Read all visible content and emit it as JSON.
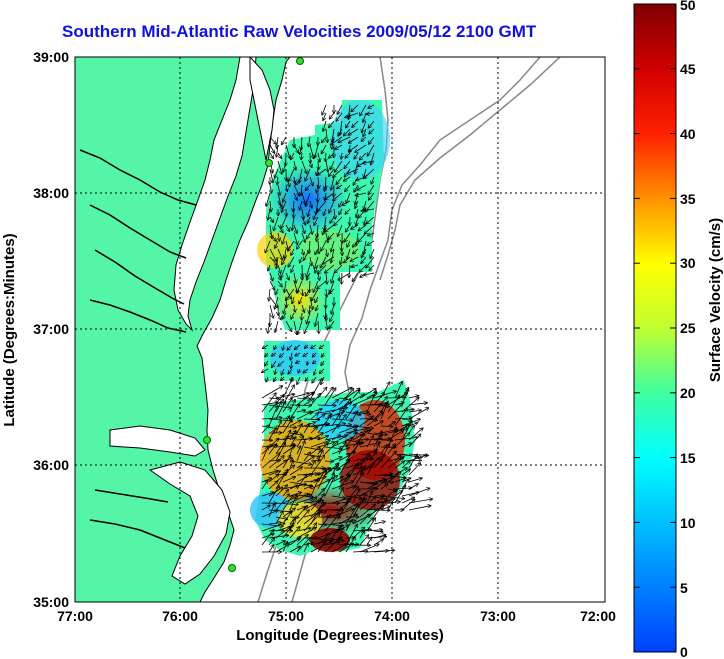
{
  "title": "Southern Mid-Atlantic Raw Velocities 2009/05/12 2100 GMT",
  "xlabel": "Longitude (Degrees:Minutes)",
  "ylabel": "Latitude (Degrees:Minutes)",
  "x_ticks": [
    "77:00",
    "76:00",
    "75:00",
    "74:00",
    "73:00",
    "72:00"
  ],
  "y_ticks": [
    "39:00",
    "38:00",
    "37:00",
    "36:00",
    "35:00"
  ],
  "colorbar": {
    "label": "Surface Velocity (cm/s)",
    "ticks": [
      "50",
      "45",
      "40",
      "35",
      "30",
      "25",
      "20",
      "15",
      "10",
      "5",
      "0"
    ],
    "range": [
      0,
      50
    ]
  },
  "colors": {
    "land": "#55f5a8",
    "coast": "#000000",
    "title": "#1010e0",
    "low": "#0050ff",
    "high": "#8b0000"
  }
}
